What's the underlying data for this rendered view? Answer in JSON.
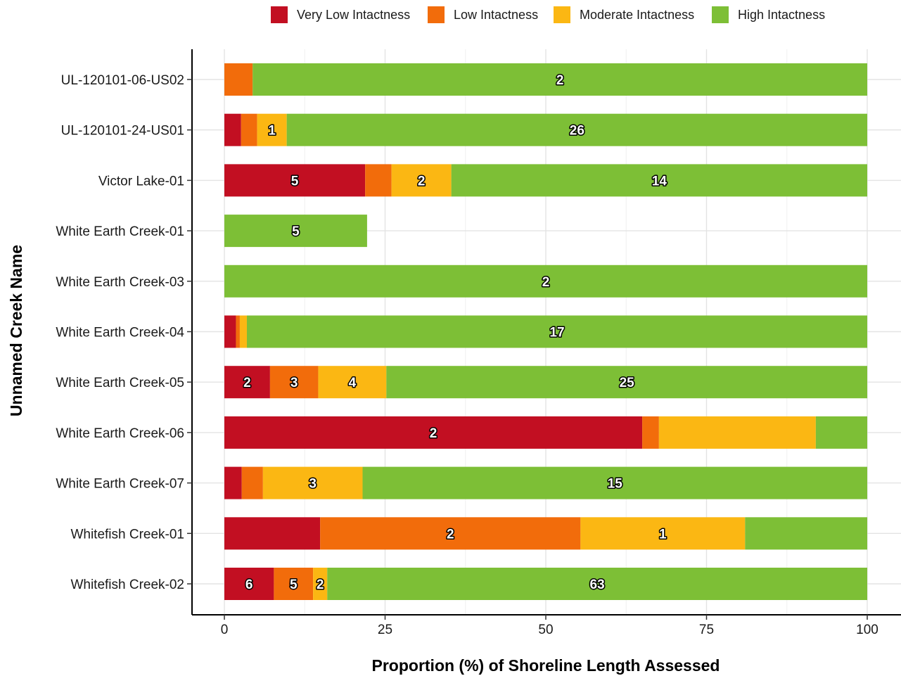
{
  "legend": {
    "items": [
      {
        "label": "Very Low Intactness",
        "color": "#c20f22"
      },
      {
        "label": "Low Intactness",
        "color": "#f26c0b"
      },
      {
        "label": "Moderate Intactness",
        "color": "#fbb713"
      },
      {
        "label": "High Intactness",
        "color": "#7dbf36"
      }
    ]
  },
  "chart_data": {
    "type": "bar",
    "orientation": "horizontal",
    "stacked": true,
    "xlabel": "Proportion (%) of Shoreline Length Assessed",
    "ylabel": "Unnamed Creek Name",
    "xlim": [
      0,
      100
    ],
    "xticks": [
      "0",
      "25",
      "50",
      "75",
      "100"
    ],
    "grid": true,
    "legend_position": "top",
    "categories": [
      "UL-120101-06-US02",
      "UL-120101-24-US01",
      "Victor Lake-01",
      "White Earth Creek-01",
      "White Earth Creek-03",
      "White Earth Creek-04",
      "White Earth Creek-05",
      "White Earth Creek-06",
      "White Earth Creek-07",
      "Whitefish Creek-01",
      "Whitefish Creek-02"
    ],
    "series": [
      {
        "name": "Very Low Intactness",
        "color": "#c20f22",
        "values": [
          0,
          2.6,
          21.9,
          0,
          0,
          1.8,
          7.1,
          65.0,
          2.7,
          14.9,
          7.7
        ],
        "labels": [
          "",
          "",
          "5",
          "",
          "",
          "",
          "2",
          "2",
          "",
          "",
          "6"
        ]
      },
      {
        "name": "Low Intactness",
        "color": "#f26c0b",
        "values": [
          4.4,
          2.5,
          4.1,
          0,
          0,
          0.6,
          7.5,
          2.6,
          3.3,
          40.5,
          6.1
        ],
        "labels": [
          "",
          "",
          "",
          "",
          "",
          "",
          "3",
          "",
          "",
          "2",
          "5"
        ]
      },
      {
        "name": "Moderate Intactness",
        "color": "#fbb713",
        "values": [
          0,
          4.6,
          9.3,
          0,
          0,
          1.1,
          10.6,
          24.4,
          15.5,
          25.6,
          2.2
        ],
        "labels": [
          "",
          "1",
          "2",
          "",
          "",
          "",
          "4",
          "",
          "3",
          "1",
          "2"
        ]
      },
      {
        "name": "High Intactness",
        "color": "#7dbf36",
        "values": [
          95.6,
          90.3,
          64.7,
          22.2,
          100,
          96.5,
          74.8,
          8.0,
          78.5,
          19.0,
          84.0
        ],
        "labels": [
          "2",
          "26",
          "14",
          "5",
          "2",
          "17",
          "25",
          "",
          "15",
          "",
          "63"
        ]
      }
    ]
  }
}
